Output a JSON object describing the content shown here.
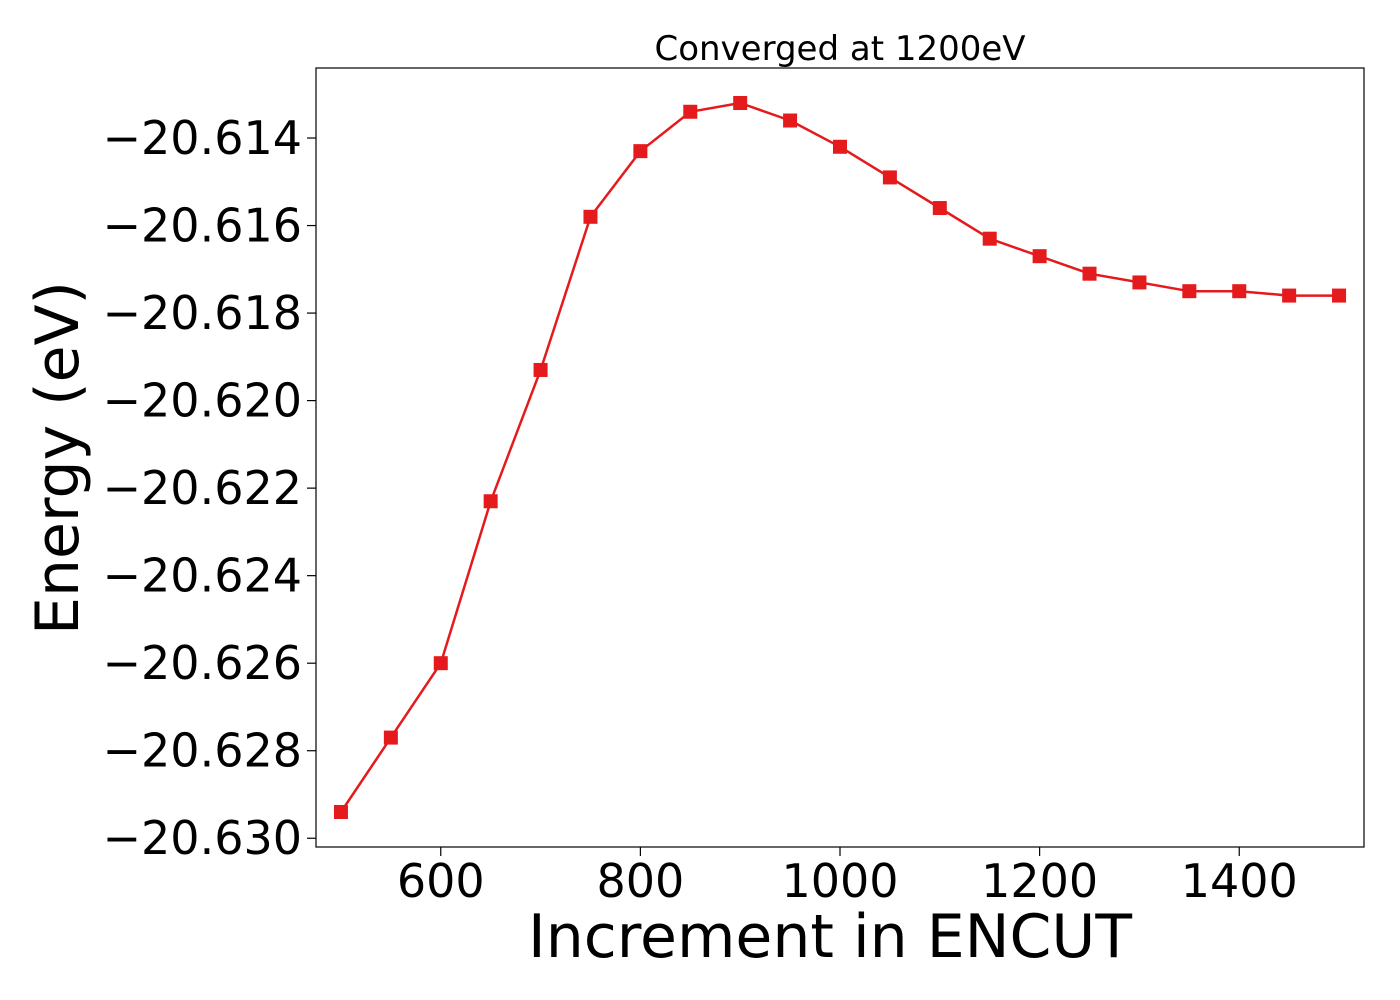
{
  "chart_data": {
    "type": "line",
    "title": "Converged at 1200eV",
    "xlabel": "Increment in ENCUT",
    "ylabel": "Energy (eV)",
    "xlim": [
      475,
      1525
    ],
    "ylim": [
      -20.6302,
      -20.6124
    ],
    "xticks": [
      600,
      800,
      1000,
      1200,
      1400
    ],
    "yticks": [
      -20.63,
      -20.628,
      -20.626,
      -20.624,
      -20.622,
      -20.62,
      -20.618,
      -20.616,
      -20.614
    ],
    "ytick_labels": [
      "−20.630",
      "−20.628",
      "−20.626",
      "−20.624",
      "−20.622",
      "−20.620",
      "−20.618",
      "−20.616",
      "−20.614"
    ],
    "grid": false,
    "legend": "none",
    "series": [
      {
        "color": "#e41a1c",
        "marker": "square",
        "x": [
          500,
          550,
          600,
          650,
          700,
          750,
          800,
          850,
          900,
          950,
          1000,
          1050,
          1100,
          1150,
          1200,
          1250,
          1300,
          1350,
          1400,
          1450,
          1500
        ],
        "y": [
          -20.6294,
          -20.6277,
          -20.626,
          -20.6223,
          -20.6193,
          -20.6158,
          -20.6143,
          -20.6134,
          -20.6132,
          -20.6136,
          -20.6142,
          -20.6149,
          -20.6156,
          -20.6163,
          -20.6167,
          -20.6171,
          -20.6173,
          -20.6175,
          -20.6175,
          -20.6176,
          -20.6176
        ]
      }
    ]
  }
}
